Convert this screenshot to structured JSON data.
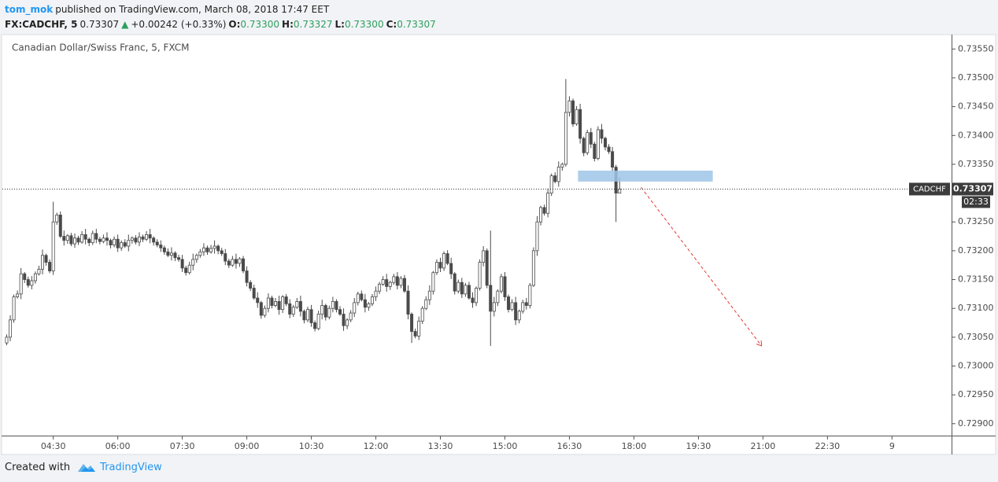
{
  "chart_data": {
    "type": "candlestick",
    "author": "tom_mok",
    "published": "published on TradingView.com, March 08, 2018 17:47 EET",
    "symbol": "FX:CADCHF, 5",
    "last": "0.73307",
    "change_arrow": "▲",
    "change": "+0.00242 (+0.33%)",
    "ohlc_labels": [
      {
        "key": "O:",
        "text": "0.73300"
      },
      {
        "key": "H:",
        "text": "0.73327"
      },
      {
        "key": "L:",
        "text": "0.73300"
      },
      {
        "key": "C:",
        "text": "0.73307"
      }
    ],
    "title": "Canadian Dollar/Swiss Franc, 5, FXCM",
    "ticker": "CADCHF",
    "countdown": "02:33",
    "footer": {
      "created": "Created with",
      "brand": "TradingView"
    },
    "up_color": "#ffffff",
    "down_color": "#4a4a4a",
    "border_color": "#4a4a4a",
    "x": [
      205,
      210,
      215,
      220,
      225,
      230,
      235,
      240,
      245,
      250,
      255,
      260,
      265,
      270,
      275,
      280,
      285,
      290,
      295,
      300,
      305,
      310,
      315,
      320,
      325,
      330,
      335,
      340,
      345,
      350,
      355,
      360,
      365,
      370,
      375,
      380,
      385,
      390,
      395,
      400,
      405,
      410,
      415,
      420,
      425,
      430,
      435,
      440,
      445,
      450,
      455,
      460,
      465,
      470,
      475,
      480,
      485,
      490,
      495,
      500,
      505,
      510,
      515,
      520,
      525,
      530,
      535,
      540,
      545,
      550,
      555,
      560,
      565,
      570,
      575,
      580,
      585,
      590,
      595,
      600,
      605,
      610,
      615,
      620,
      625,
      630,
      635,
      640,
      645,
      650,
      655,
      660,
      665,
      670,
      675,
      680,
      685,
      690,
      695,
      700,
      705,
      710,
      715,
      720,
      725,
      730,
      735,
      740,
      745,
      750,
      755,
      760,
      765,
      770,
      775,
      780,
      785,
      790,
      795,
      800,
      805,
      810,
      815,
      820,
      825,
      830,
      835,
      840,
      845,
      850,
      855,
      860,
      865,
      870,
      875,
      880,
      885,
      890,
      895,
      900,
      905,
      910,
      915,
      920,
      925,
      930,
      935,
      940,
      945,
      950,
      955,
      960,
      965,
      970,
      975,
      980,
      985,
      990,
      995,
      1000,
      1005,
      1010,
      1015,
      1020,
      1025,
      1030,
      1035,
      1040,
      1045,
      1050,
      1055,
      1060
    ],
    "open": [
      0.7304,
      0.7305,
      0.7308,
      0.7312,
      0.73125,
      0.7316,
      0.7315,
      0.7314,
      0.73148,
      0.7316,
      0.73168,
      0.73192,
      0.7318,
      0.73165,
      0.7325,
      0.73262,
      0.73225,
      0.73218,
      0.73226,
      0.73212,
      0.73222,
      0.73215,
      0.73228,
      0.7322,
      0.73214,
      0.7323,
      0.7322,
      0.73216,
      0.73222,
      0.73218,
      0.7321,
      0.7322,
      0.73205,
      0.73214,
      0.73208,
      0.73218,
      0.73222,
      0.73215,
      0.73224,
      0.7322,
      0.73228,
      0.73222,
      0.73215,
      0.7321,
      0.73205,
      0.73198,
      0.73192,
      0.73196,
      0.73188,
      0.73185,
      0.7317,
      0.73162,
      0.73175,
      0.73185,
      0.73192,
      0.73198,
      0.73205,
      0.73198,
      0.73204,
      0.73208,
      0.732,
      0.73195,
      0.73182,
      0.73175,
      0.73185,
      0.73178,
      0.73186,
      0.73165,
      0.73145,
      0.73135,
      0.73118,
      0.7311,
      0.73088,
      0.731,
      0.73118,
      0.73105,
      0.73112,
      0.73098,
      0.7312,
      0.73108,
      0.7309,
      0.73102,
      0.73112,
      0.73095,
      0.7308,
      0.73098,
      0.73075,
      0.73065,
      0.7309,
      0.73105,
      0.73085,
      0.731,
      0.73112,
      0.73098,
      0.7309,
      0.7307,
      0.7308,
      0.73092,
      0.7311,
      0.73125,
      0.73115,
      0.73102,
      0.73108,
      0.7312,
      0.7313,
      0.73142,
      0.7315,
      0.73138,
      0.73145,
      0.73155,
      0.7314,
      0.73152,
      0.7313,
      0.7309,
      0.7306,
      0.73052,
      0.73078,
      0.731,
      0.73115,
      0.7313,
      0.73162,
      0.7318,
      0.7317,
      0.73195,
      0.73178,
      0.7316,
      0.7313,
      0.73145,
      0.73125,
      0.7314,
      0.73118,
      0.7311,
      0.73135,
      0.7318,
      0.732,
      0.7314,
      0.73095,
      0.7311,
      0.7313,
      0.73155,
      0.7312,
      0.73098,
      0.7311,
      0.7308,
      0.73095,
      0.7311,
      0.73105,
      0.7314,
      0.732,
      0.7325,
      0.73275,
      0.73265,
      0.733,
      0.7333,
      0.7332,
      0.73345,
      0.7335,
      0.7344,
      0.7346,
      0.7342,
      0.73445,
      0.73395,
      0.7337,
      0.73405,
      0.73385,
      0.7336,
      0.7341,
      0.73395,
      0.7338,
      0.73372,
      0.73345,
      0.733
    ],
    "high": [
      0.73055,
      0.73088,
      0.73124,
      0.73131,
      0.7317,
      0.73163,
      0.73155,
      0.73156,
      0.73164,
      0.73174,
      0.73202,
      0.73195,
      0.73185,
      0.73285,
      0.73266,
      0.73268,
      0.73235,
      0.73229,
      0.73231,
      0.7323,
      0.73226,
      0.73234,
      0.73238,
      0.73223,
      0.73235,
      0.73238,
      0.73224,
      0.73228,
      0.73232,
      0.73221,
      0.73225,
      0.73228,
      0.73218,
      0.7322,
      0.73228,
      0.73225,
      0.73227,
      0.73232,
      0.73228,
      0.73234,
      0.73238,
      0.73225,
      0.7322,
      0.73218,
      0.73209,
      0.73204,
      0.73206,
      0.73199,
      0.73193,
      0.73193,
      0.73174,
      0.73181,
      0.73195,
      0.73195,
      0.73203,
      0.73213,
      0.73209,
      0.7321,
      0.73218,
      0.73211,
      0.73205,
      0.73203,
      0.73186,
      0.73191,
      0.73195,
      0.73189,
      0.73191,
      0.73173,
      0.73149,
      0.73141,
      0.73128,
      0.73113,
      0.73105,
      0.73126,
      0.73122,
      0.73118,
      0.73122,
      0.73123,
      0.73125,
      0.73116,
      0.73106,
      0.73118,
      0.73122,
      0.73098,
      0.73103,
      0.73106,
      0.73079,
      0.73096,
      0.73115,
      0.73108,
      0.73105,
      0.7312,
      0.73116,
      0.73104,
      0.731,
      0.73083,
      0.73097,
      0.73118,
      0.73129,
      0.73131,
      0.73125,
      0.73111,
      0.73125,
      0.73138,
      0.73146,
      0.73156,
      0.7316,
      0.73148,
      0.7316,
      0.73163,
      0.73156,
      0.73158,
      0.7314,
      0.73093,
      0.73065,
      0.73086,
      0.73104,
      0.73121,
      0.7314,
      0.73165,
      0.73185,
      0.73188,
      0.73199,
      0.73201,
      0.73188,
      0.73163,
      0.7315,
      0.73153,
      0.73144,
      0.73146,
      0.73128,
      0.73138,
      0.73185,
      0.73208,
      0.73204,
      0.73235,
      0.7312,
      0.73133,
      0.7316,
      0.73163,
      0.73124,
      0.73116,
      0.7312,
      0.73098,
      0.73115,
      0.73118,
      0.73144,
      0.73206,
      0.7326,
      0.73278,
      0.7328,
      0.73308,
      0.73334,
      0.73336,
      0.73355,
      0.73353,
      0.73498,
      0.73468,
      0.73464,
      0.73451,
      0.73455,
      0.73398,
      0.7341,
      0.73413,
      0.73389,
      0.73416,
      0.7342,
      0.73398,
      0.73385,
      0.7338,
      0.73349,
      0.73327
    ],
    "low": [
      0.73036,
      0.73043,
      0.73075,
      0.73117,
      0.73116,
      0.73144,
      0.73136,
      0.73133,
      0.73143,
      0.73157,
      0.73159,
      0.73174,
      0.73161,
      0.73158,
      0.73245,
      0.73222,
      0.73209,
      0.73212,
      0.73208,
      0.73205,
      0.7321,
      0.73212,
      0.73211,
      0.73208,
      0.7321,
      0.73213,
      0.73211,
      0.73213,
      0.73209,
      0.73204,
      0.73206,
      0.73198,
      0.732,
      0.73205,
      0.73199,
      0.73212,
      0.73211,
      0.73208,
      0.73215,
      0.73217,
      0.73213,
      0.73209,
      0.73206,
      0.73198,
      0.73193,
      0.73189,
      0.73183,
      0.73182,
      0.73181,
      0.73163,
      0.73157,
      0.73159,
      0.73166,
      0.73179,
      0.73188,
      0.73191,
      0.73193,
      0.73195,
      0.73195,
      0.73194,
      0.73191,
      0.73175,
      0.7317,
      0.73172,
      0.73169,
      0.73172,
      0.73161,
      0.73138,
      0.7313,
      0.73115,
      0.73101,
      0.73082,
      0.73084,
      0.73093,
      0.731,
      0.73102,
      0.73089,
      0.73092,
      0.73104,
      0.73083,
      0.73085,
      0.73099,
      0.73086,
      0.73074,
      0.73076,
      0.73068,
      0.7306,
      0.73062,
      0.73081,
      0.73079,
      0.73081,
      0.73093,
      0.73093,
      0.73087,
      0.73061,
      0.73064,
      0.73076,
      0.73085,
      0.73105,
      0.73112,
      0.73093,
      0.73096,
      0.73104,
      0.73113,
      0.73125,
      0.73139,
      0.73129,
      0.73132,
      0.73141,
      0.73133,
      0.73135,
      0.73127,
      0.73081,
      0.7304,
      0.73048,
      0.73045,
      0.73073,
      0.73097,
      0.73106,
      0.73124,
      0.73158,
      0.73163,
      0.73165,
      0.73175,
      0.73151,
      0.73124,
      0.73126,
      0.73118,
      0.7312,
      0.73115,
      0.73101,
      0.73104,
      0.73131,
      0.73173,
      0.73135,
      0.73035,
      0.73086,
      0.73104,
      0.73126,
      0.73113,
      0.73093,
      0.73095,
      0.73071,
      0.73074,
      0.73091,
      0.73098,
      0.731,
      0.73137,
      0.73191,
      0.73244,
      0.73261,
      0.73258,
      0.73295,
      0.73317,
      0.73311,
      0.73339,
      0.73346,
      0.73433,
      0.73415,
      0.73417,
      0.73386,
      0.73364,
      0.73366,
      0.73378,
      0.73355,
      0.73357,
      0.73386,
      0.73374,
      0.73368,
      0.73338,
      0.7325,
      0.733
    ],
    "close": [
      0.7305,
      0.7308,
      0.7312,
      0.73125,
      0.7316,
      0.7315,
      0.7314,
      0.73148,
      0.7316,
      0.73168,
      0.73192,
      0.7318,
      0.73165,
      0.7325,
      0.73262,
      0.73225,
      0.73218,
      0.73226,
      0.73212,
      0.73222,
      0.73215,
      0.73228,
      0.7322,
      0.73214,
      0.7323,
      0.7322,
      0.73216,
      0.73222,
      0.73218,
      0.7321,
      0.7322,
      0.73205,
      0.73214,
      0.73208,
      0.73218,
      0.73222,
      0.73215,
      0.73224,
      0.7322,
      0.73228,
      0.73222,
      0.73215,
      0.7321,
      0.73205,
      0.73198,
      0.73192,
      0.73196,
      0.73188,
      0.73185,
      0.7317,
      0.73162,
      0.73175,
      0.73185,
      0.73192,
      0.73198,
      0.73205,
      0.73198,
      0.73204,
      0.73208,
      0.732,
      0.73195,
      0.73182,
      0.73175,
      0.73185,
      0.73178,
      0.73186,
      0.73165,
      0.73145,
      0.73135,
      0.73118,
      0.7311,
      0.73088,
      0.731,
      0.73118,
      0.73105,
      0.73112,
      0.73098,
      0.7312,
      0.73108,
      0.7309,
      0.73102,
      0.73112,
      0.73095,
      0.7308,
      0.73098,
      0.73075,
      0.73065,
      0.7309,
      0.73105,
      0.73085,
      0.731,
      0.73112,
      0.73098,
      0.7309,
      0.7307,
      0.7308,
      0.73092,
      0.7311,
      0.73125,
      0.73115,
      0.73102,
      0.73108,
      0.7312,
      0.7313,
      0.73142,
      0.7315,
      0.73138,
      0.73145,
      0.73155,
      0.7314,
      0.73152,
      0.7313,
      0.7309,
      0.7306,
      0.73052,
      0.73078,
      0.731,
      0.73115,
      0.7313,
      0.73162,
      0.7318,
      0.7317,
      0.73195,
      0.73178,
      0.7316,
      0.7313,
      0.73145,
      0.73125,
      0.7314,
      0.73118,
      0.7311,
      0.73135,
      0.7318,
      0.732,
      0.7314,
      0.73095,
      0.7311,
      0.7313,
      0.73155,
      0.7312,
      0.73098,
      0.7311,
      0.7308,
      0.73095,
      0.7311,
      0.73105,
      0.7314,
      0.732,
      0.7325,
      0.73275,
      0.73265,
      0.733,
      0.7333,
      0.7332,
      0.73345,
      0.7335,
      0.7344,
      0.7346,
      0.7342,
      0.73445,
      0.73395,
      0.7337,
      0.73405,
      0.73385,
      0.7336,
      0.7341,
      0.73395,
      0.7338,
      0.73372,
      0.73345,
      0.733,
      0.73307
    ],
    "xlim": [
      199,
      1522
    ],
    "ylim": [
      0.72882,
      0.73575
    ],
    "xticks": [
      {
        "value": 270,
        "label": "04:30"
      },
      {
        "value": 360,
        "label": "06:00"
      },
      {
        "value": 450,
        "label": "07:30"
      },
      {
        "value": 540,
        "label": "09:00"
      },
      {
        "value": 630,
        "label": "10:30"
      },
      {
        "value": 720,
        "label": "12:00"
      },
      {
        "value": 810,
        "label": "13:30"
      },
      {
        "value": 900,
        "label": "15:00"
      },
      {
        "value": 990,
        "label": "16:30"
      },
      {
        "value": 1080,
        "label": "18:00"
      },
      {
        "value": 1170,
        "label": "19:30"
      },
      {
        "value": 1260,
        "label": "21:00"
      },
      {
        "value": 1350,
        "label": "22:30"
      },
      {
        "value": 1440,
        "label": "9"
      }
    ],
    "yticks": [
      {
        "value": 0.7355,
        "label": "0.73550"
      },
      {
        "value": 0.735,
        "label": "0.73500"
      },
      {
        "value": 0.7345,
        "label": "0.73450"
      },
      {
        "value": 0.734,
        "label": "0.73400"
      },
      {
        "value": 0.7335,
        "label": "0.73350"
      },
      {
        "value": 0.733,
        "label": "0.73300"
      },
      {
        "value": 0.7325,
        "label": "0.73250"
      },
      {
        "value": 0.732,
        "label": "0.73200"
      },
      {
        "value": 0.7315,
        "label": "0.73150"
      },
      {
        "value": 0.731,
        "label": "0.73100"
      },
      {
        "value": 0.7305,
        "label": "0.73050"
      },
      {
        "value": 0.73,
        "label": "0.73000"
      },
      {
        "value": 0.7295,
        "label": "0.72950"
      },
      {
        "value": 0.729,
        "label": "0.72900"
      }
    ],
    "annotations": [
      {
        "type": "rect",
        "x": [
          1002,
          1190
        ],
        "y": [
          0.7332,
          0.73339
        ],
        "color": "#9fc5e8"
      },
      {
        "type": "arrow",
        "x": [
          1090,
          1258
        ],
        "y": [
          0.7331,
          0.73035
        ],
        "color": "#e53935"
      }
    ]
  }
}
